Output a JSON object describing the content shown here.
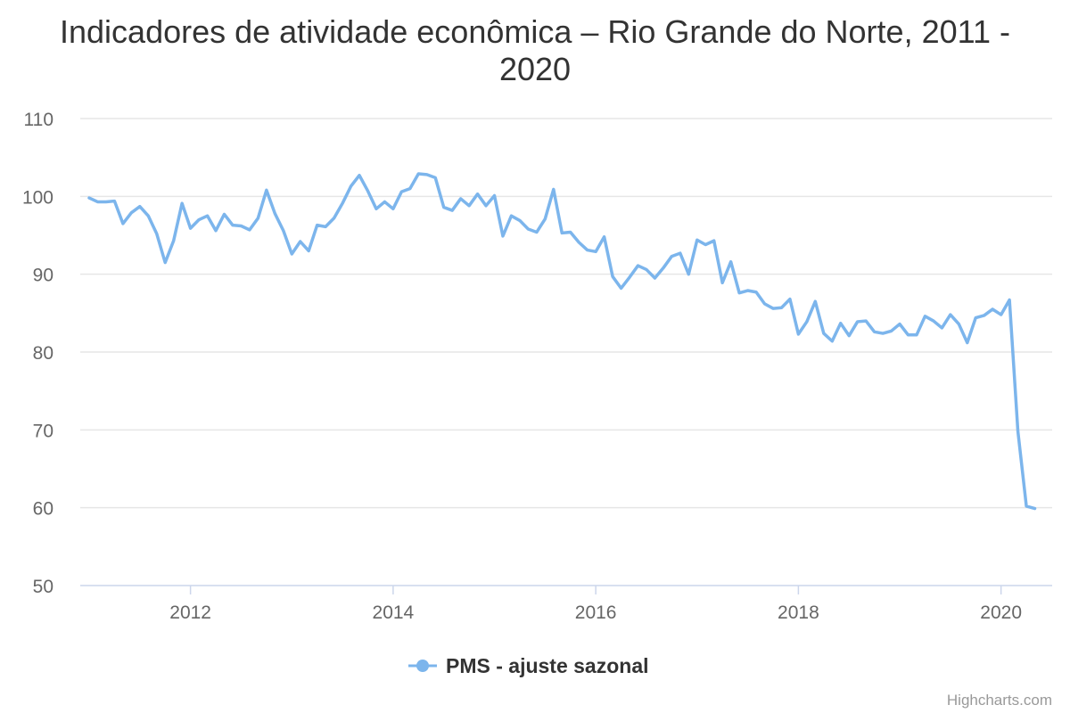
{
  "chart_data": {
    "type": "line",
    "title_line1": "Indicadores de atividade econômica – Rio Grande do Norte, 2011 -",
    "title_line2": "2020",
    "xlabel": "",
    "ylabel": "",
    "xlim": [
      2011.0,
      2020.4167
    ],
    "ylim": [
      50,
      110
    ],
    "y_ticks": [
      "50",
      "60",
      "70",
      "80",
      "90",
      "100",
      "110"
    ],
    "x_ticks": [
      "2012",
      "2014",
      "2016",
      "2018",
      "2020"
    ],
    "grid": true,
    "legend_position": "bottom-center",
    "series": [
      {
        "name": "PMS - ajuste sazonal",
        "color": "#7cb5ec",
        "x_start": "2011-01",
        "frequency": "monthly",
        "values": [
          99.8,
          99.3,
          99.3,
          99.4,
          96.5,
          97.9,
          98.7,
          97.5,
          95.2,
          91.5,
          94.3,
          99.1,
          95.9,
          97.0,
          97.5,
          95.6,
          97.7,
          96.3,
          96.2,
          95.7,
          97.2,
          100.8,
          97.8,
          95.6,
          92.6,
          94.2,
          93.0,
          96.3,
          96.1,
          97.2,
          99.1,
          101.3,
          102.7,
          100.7,
          98.4,
          99.3,
          98.4,
          100.6,
          101.0,
          102.9,
          102.8,
          102.4,
          98.6,
          98.2,
          99.7,
          98.8,
          100.3,
          98.8,
          100.1,
          94.9,
          97.5,
          96.9,
          95.8,
          95.4,
          97.1,
          100.9,
          95.3,
          95.4,
          94.1,
          93.1,
          92.9,
          94.8,
          89.7,
          88.2,
          89.6,
          91.1,
          90.6,
          89.5,
          90.8,
          92.3,
          92.7,
          90.0,
          94.4,
          93.8,
          94.3,
          88.9,
          91.6,
          87.6,
          87.9,
          87.7,
          86.2,
          85.6,
          85.7,
          86.8,
          82.3,
          83.9,
          86.5,
          82.4,
          81.4,
          83.7,
          82.1,
          83.9,
          84.0,
          82.6,
          82.4,
          82.7,
          83.6,
          82.2,
          82.2,
          84.6,
          84.0,
          83.1,
          84.8,
          83.6,
          81.2,
          84.4,
          84.7,
          85.5,
          84.8,
          86.7,
          69.8,
          60.2,
          59.9
        ]
      }
    ]
  },
  "credits": "Highcharts.com"
}
